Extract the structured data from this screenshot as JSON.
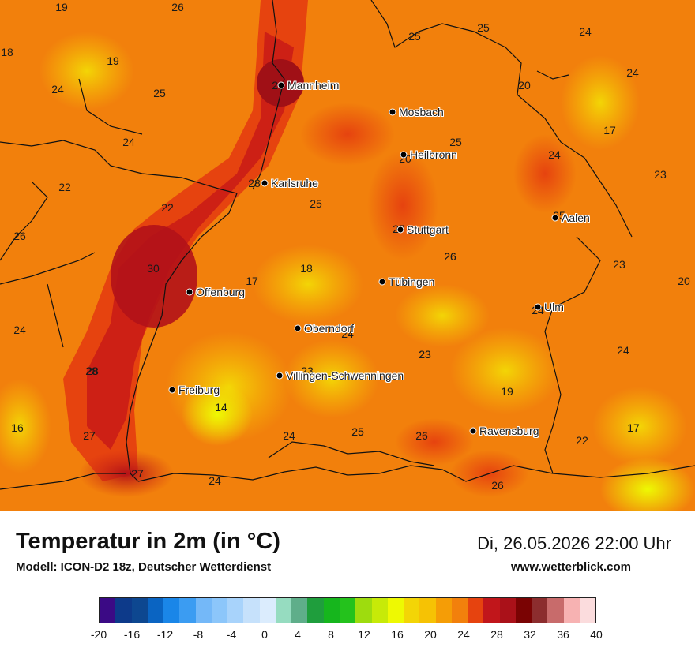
{
  "map": {
    "cities": [
      {
        "name": "Mannheim"
      },
      {
        "name": "Mosbach"
      },
      {
        "name": "Heilbronn"
      },
      {
        "name": "Karlsruhe"
      },
      {
        "name": "Stuttgart"
      },
      {
        "name": "Aalen"
      },
      {
        "name": "Tübingen"
      },
      {
        "name": "Offenburg"
      },
      {
        "name": "Oberndorf"
      },
      {
        "name": "Ulm"
      },
      {
        "name": "Villingen-Schwenningen"
      },
      {
        "name": "Freiburg"
      },
      {
        "name": "Ravensburg"
      }
    ],
    "values": [
      "19",
      "26",
      "18",
      "19",
      "24",
      "25",
      "25",
      "24",
      "25",
      "24",
      "20",
      "24",
      "25",
      "17",
      "25",
      "24",
      "23",
      "22",
      "22",
      "25",
      "26",
      "30",
      "17",
      "18",
      "26",
      "23",
      "20",
      "24",
      "24",
      "23",
      "24",
      "28",
      "23",
      "19",
      "14",
      "16",
      "27",
      "24",
      "25",
      "26",
      "22",
      "17",
      "27",
      "24",
      "26",
      "28",
      "26",
      "28",
      "27",
      "23",
      "26",
      "27",
      "25",
      "24",
      "20"
    ]
  },
  "footer": {
    "title": "Temperatur in 2m (in °C)",
    "model": "Modell: ICON-D2 18z, Deutscher Wetterdienst",
    "datetime": "Di, 26.05.2026 22:00 Uhr",
    "website": "www.wetterblick.com"
  },
  "legend": {
    "colors": [
      "#3b0a85",
      "#0d3a8a",
      "#0d4790",
      "#0a64c2",
      "#1a86e8",
      "#3b9cf2",
      "#74b8f8",
      "#8cc6fa",
      "#a8d3fb",
      "#c6e1fb",
      "#dbecfd",
      "#96dcc0",
      "#5fae8a",
      "#1f9e3d",
      "#16b61d",
      "#24c21c",
      "#9edc0e",
      "#c7ea08",
      "#eef902",
      "#f3d506",
      "#f6c204",
      "#f59d06",
      "#f2800c",
      "#e6430f",
      "#c1161b",
      "#aa1119",
      "#7a0303",
      "#8c2d2e",
      "#c86b6b",
      "#f7b2b2",
      "#fbdcdd"
    ],
    "ticks": [
      "-20",
      "-16",
      "-12",
      "-8",
      "-4",
      "0",
      "4",
      "8",
      "12",
      "16",
      "20",
      "24",
      "28",
      "32",
      "36",
      "40"
    ]
  }
}
